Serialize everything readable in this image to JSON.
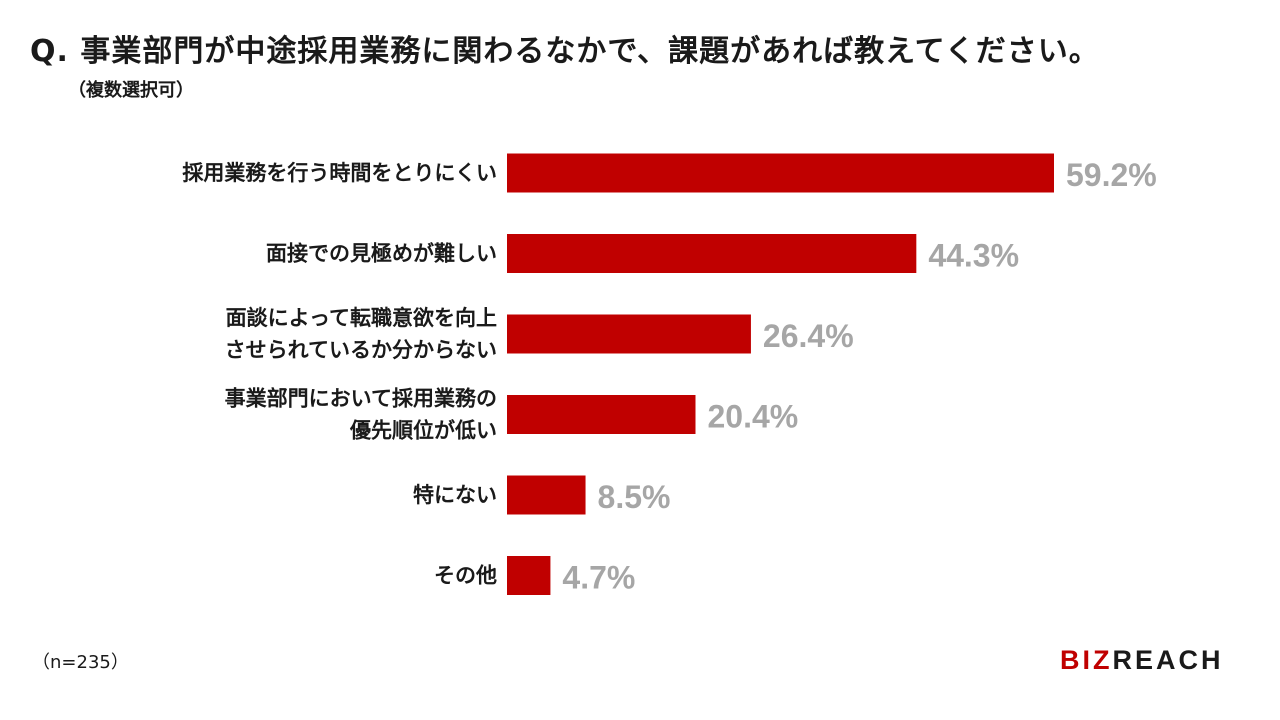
{
  "title": "Q. 事業部門が中途採用業務に関わるなかで、課題があれば教えてください。",
  "subtitle": "（複数選択可）",
  "footnote": "（n=235）",
  "logo": {
    "text_red": "BIZ",
    "text_dark": "REACH"
  },
  "colors": {
    "bar": "#c00000",
    "value_label": "#a6a6a6",
    "logo_red": "#c00000",
    "logo_dark": "#1a1a1a"
  },
  "chart_data": {
    "type": "bar",
    "orientation": "horizontal",
    "categories": [
      [
        "採用業務を行う時間をとりにくい"
      ],
      [
        "面接での見極めが難しい"
      ],
      [
        "面談によって転職意欲を向上",
        "させられているか分からない"
      ],
      [
        "事業部門において採用業務の",
        "優先順位が低い"
      ],
      [
        "特にない"
      ],
      [
        "その他"
      ]
    ],
    "values": [
      59.2,
      44.3,
      26.4,
      20.4,
      8.5,
      4.7
    ],
    "value_labels": [
      "59.2%",
      "44.3%",
      "26.4%",
      "20.4%",
      "8.5%",
      "4.7%"
    ],
    "unit": "%",
    "xlim": [
      0,
      100
    ],
    "grid": false,
    "legend": "none"
  }
}
